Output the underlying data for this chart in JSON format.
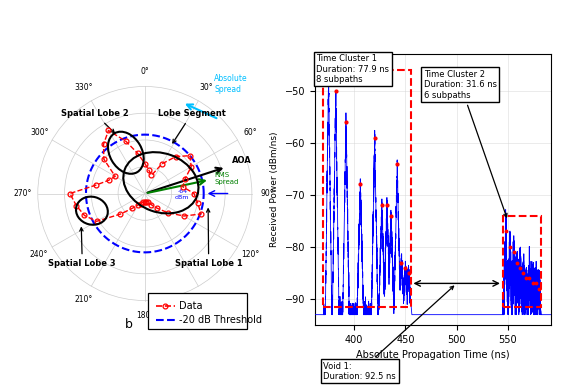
{
  "bg_color": "#ffffff",
  "cluster1_text": "Time Cluster 1\nDuration: 77.9 ns\n8 subpaths",
  "cluster2_text": "Time Cluster 2\nDuration: 31.6 ns\n6 subpaths",
  "void1_text": "Void 1:\nDuration: 92.5 ns",
  "xlabel_right": "Absolute Propagation Time (ns)",
  "ylabel_right": "Received Power (dBm/ns)",
  "ylim_right": [
    -95,
    -43
  ],
  "xlim_right": [
    362,
    592
  ],
  "yticks": [
    -90,
    -80,
    -70,
    -60,
    -50
  ],
  "xticks": [
    400,
    450,
    500,
    550
  ],
  "t1_start": 370,
  "t1_end": 455,
  "t2_start": 545,
  "t2_end": 582,
  "peaks1": [
    [
      375,
      -47.5
    ],
    [
      382,
      -50
    ],
    [
      392,
      -56
    ],
    [
      406,
      -68
    ],
    [
      420,
      -59
    ],
    [
      427,
      -72
    ],
    [
      432,
      -72
    ],
    [
      436,
      -74
    ],
    [
      442,
      -64
    ],
    [
      446,
      -83
    ],
    [
      450,
      -84
    ],
    [
      453,
      -85
    ]
  ],
  "peaks2": [
    [
      548,
      -77
    ],
    [
      552,
      -80
    ],
    [
      556,
      -81
    ],
    [
      559,
      -83
    ],
    [
      562,
      -84
    ],
    [
      565,
      -85
    ],
    [
      568,
      -86
    ],
    [
      571,
      -86
    ],
    [
      574,
      -87
    ],
    [
      577,
      -87
    ],
    [
      580,
      -88
    ]
  ],
  "threshold_circle_r": 0.55,
  "radii": [
    0.28,
    0.22,
    0.18,
    0.32,
    0.45,
    0.55,
    0.5,
    0.4,
    0.36,
    0.46,
    0.5,
    0.56,
    0.42,
    0.28,
    0.18,
    0.12,
    0.08,
    0.08,
    0.08,
    0.08,
    0.1,
    0.12,
    0.18,
    0.3,
    0.52,
    0.6,
    0.65,
    0.7,
    0.46,
    0.36,
    0.32,
    0.5,
    0.6,
    0.68,
    0.52,
    0.38
  ],
  "angles_deg": [
    0,
    10,
    20,
    30,
    40,
    50,
    60,
    70,
    80,
    90,
    100,
    110,
    120,
    130,
    140,
    150,
    160,
    170,
    180,
    190,
    200,
    210,
    220,
    230,
    240,
    250,
    260,
    270,
    280,
    290,
    300,
    310,
    320,
    330,
    340,
    350
  ]
}
